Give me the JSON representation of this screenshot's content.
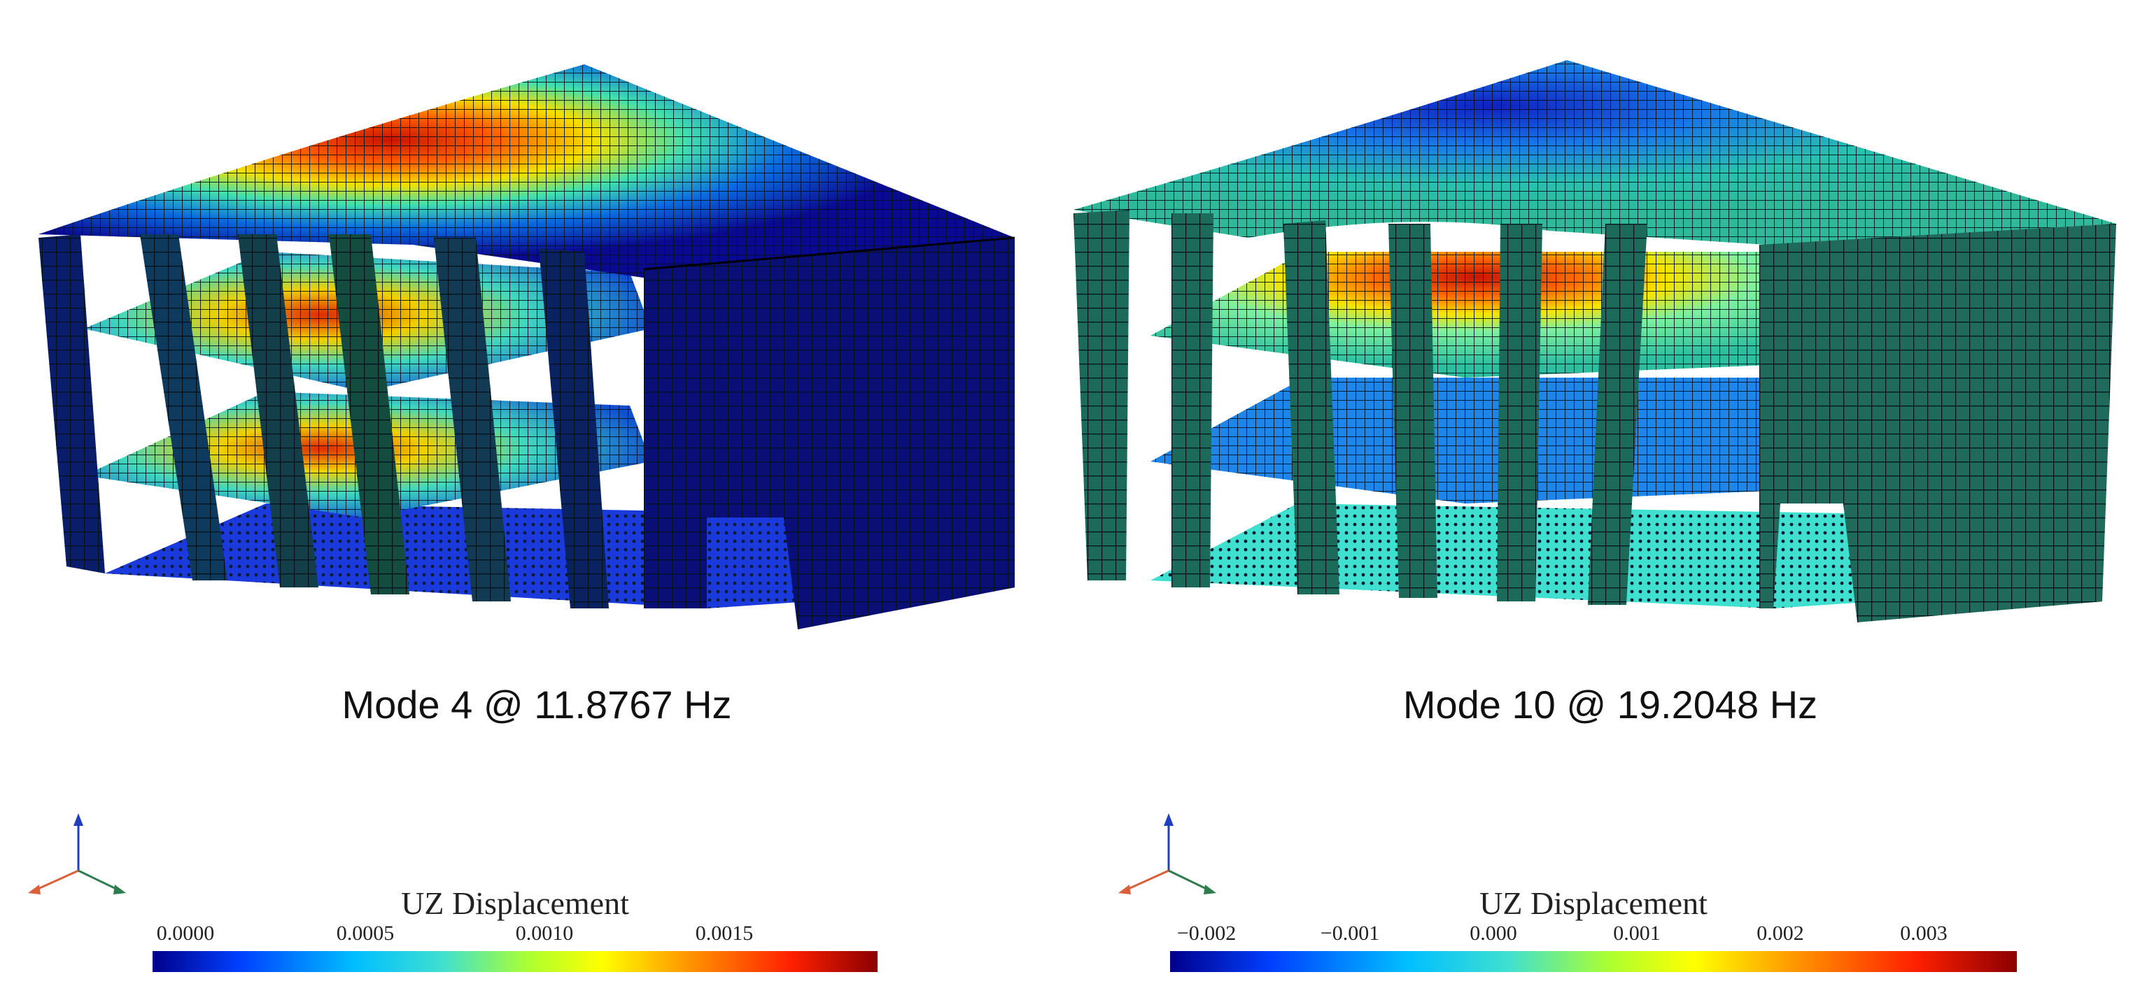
{
  "figures": [
    {
      "mode_label": "Mode 4 @ 11.8767 Hz",
      "colorbar": {
        "title": "UZ Displacement",
        "ticks": [
          "0.0000",
          "0.0005",
          "0.0010",
          "0.0015"
        ]
      }
    },
    {
      "mode_label": "Mode 10 @ 19.2048 Hz",
      "colorbar": {
        "title": "UZ Displacement",
        "ticks": [
          "−0.002",
          "−0.001",
          "0.000",
          "0.001",
          "0.002",
          "0.003"
        ]
      }
    }
  ],
  "colormap": [
    "#00008b",
    "#0040ff",
    "#00bfff",
    "#40e0d0",
    "#adff2f",
    "#ffff00",
    "#ff8c00",
    "#ff2000",
    "#8b0000"
  ],
  "triad_colors": {
    "z": "#1f3fbf",
    "x": "#d9603b",
    "y": "#2e7d4f"
  }
}
